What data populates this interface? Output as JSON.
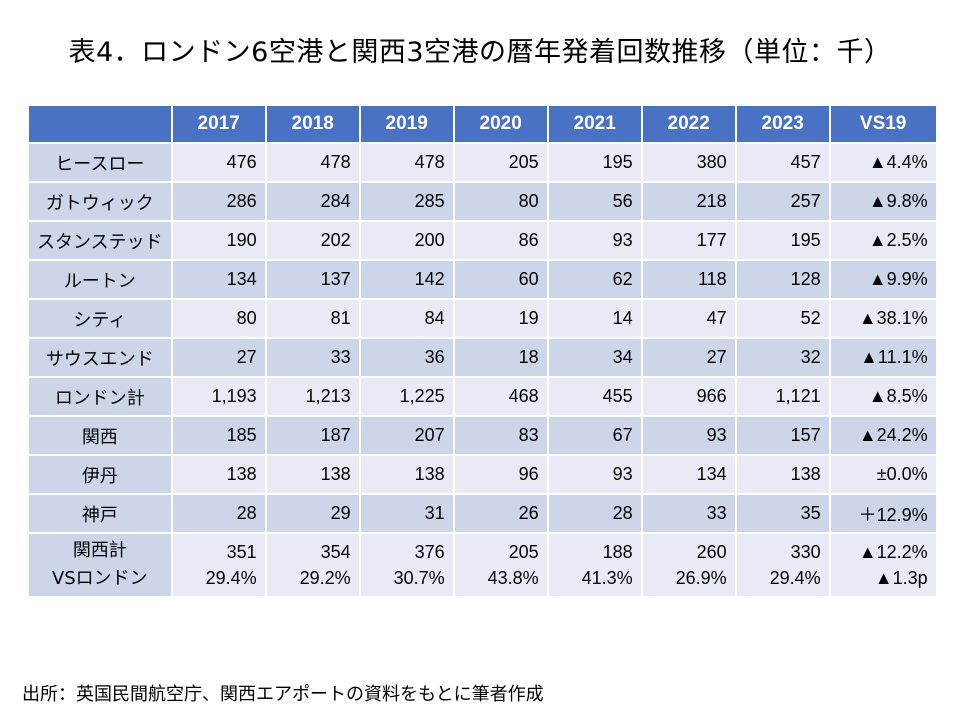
{
  "title": "表4．ロンドン6空港と関西3空港の暦年発着回数推移（単位：千）",
  "footnote": "出所：英国民間航空庁、関西エアポートの資料をもとに筆者作成",
  "chart_data": {
    "type": "table",
    "columns": [
      "",
      "2017",
      "2018",
      "2019",
      "2020",
      "2021",
      "2022",
      "2023",
      "VS19"
    ],
    "rows": [
      {
        "label": "ヒースロー",
        "values": [
          "476",
          "478",
          "478",
          "205",
          "195",
          "380",
          "457",
          "▲4.4%"
        ]
      },
      {
        "label": "ガトウィック",
        "values": [
          "286",
          "284",
          "285",
          "80",
          "56",
          "218",
          "257",
          "▲9.8%"
        ]
      },
      {
        "label": "スタンステッド",
        "values": [
          "190",
          "202",
          "200",
          "86",
          "93",
          "177",
          "195",
          "▲2.5%"
        ]
      },
      {
        "label": "ルートン",
        "values": [
          "134",
          "137",
          "142",
          "60",
          "62",
          "118",
          "128",
          "▲9.9%"
        ]
      },
      {
        "label": "シティ",
        "values": [
          "80",
          "81",
          "84",
          "19",
          "14",
          "47",
          "52",
          "▲38.1%"
        ]
      },
      {
        "label": "サウスエンド",
        "values": [
          "27",
          "33",
          "36",
          "18",
          "34",
          "27",
          "32",
          "▲11.1%"
        ]
      },
      {
        "label": "ロンドン計",
        "values": [
          "1,193",
          "1,213",
          "1,225",
          "468",
          "455",
          "966",
          "1,121",
          "▲8.5%"
        ]
      },
      {
        "label": "関西",
        "values": [
          "185",
          "187",
          "207",
          "83",
          "67",
          "93",
          "157",
          "▲24.2%"
        ]
      },
      {
        "label": "伊丹",
        "values": [
          "138",
          "138",
          "138",
          "96",
          "93",
          "134",
          "138",
          "±0.0%"
        ]
      },
      {
        "label": "神戸",
        "values": [
          "28",
          "29",
          "31",
          "26",
          "28",
          "33",
          "35",
          "＋12.9%"
        ]
      },
      {
        "label": "関西計",
        "label2": "VSロンドン",
        "values": [
          "351",
          "354",
          "376",
          "205",
          "188",
          "260",
          "330",
          "▲12.2%"
        ],
        "values2": [
          "29.4%",
          "29.2%",
          "30.7%",
          "43.8%",
          "41.3%",
          "26.9%",
          "29.4%",
          "▲1.3p"
        ]
      }
    ]
  }
}
